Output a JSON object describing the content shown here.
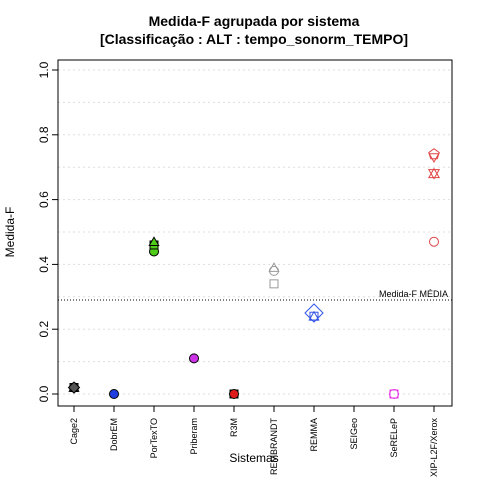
{
  "chart_data": {
    "type": "scatter",
    "title": "Medida-F agrupada por sistema",
    "subtitle": "[Classificação : ALT : tempo_sonorm_TEMPO]",
    "xlabel": "Sistemas",
    "ylabel": "Medida-F",
    "ylim": [
      0,
      1
    ],
    "yticks": [
      "0.0",
      "0.2",
      "0.4",
      "0.6",
      "0.8",
      "1.0"
    ],
    "grid": true,
    "categories": [
      "Cage2",
      "DobrEM",
      "PorTexTO",
      "Priberam",
      "R3M",
      "REMBRANDT",
      "REMMA",
      "SEIGeo",
      "SeRELeP",
      "XIP-L2F/Xerox"
    ],
    "reference_line": {
      "label": "Medida-F MÉDIA",
      "value": 0.29
    },
    "points": [
      {
        "category": "Cage2",
        "y": 0.02,
        "shape": "circle",
        "filled": true,
        "color": "#555555"
      },
      {
        "category": "Cage2",
        "y": 0.02,
        "shape": "square",
        "filled": true,
        "color": "#555555"
      },
      {
        "category": "Cage2",
        "y": 0.02,
        "shape": "triangle",
        "filled": true,
        "color": "#555555"
      },
      {
        "category": "Cage2",
        "y": 0.02,
        "shape": "diamond",
        "filled": true,
        "color": "#555555"
      },
      {
        "category": "DobrEM",
        "y": 0.0,
        "shape": "circle",
        "filled": true,
        "color": "#1f3fe0"
      },
      {
        "category": "PorTexTO",
        "y": 0.44,
        "shape": "circle",
        "filled": true,
        "color": "#4fcc1a"
      },
      {
        "category": "PorTexTO",
        "y": 0.46,
        "shape": "square",
        "filled": true,
        "color": "#4fcc1a"
      },
      {
        "category": "PorTexTO",
        "y": 0.47,
        "shape": "triangle",
        "filled": true,
        "color": "#4fcc1a"
      },
      {
        "category": "Priberam",
        "y": 0.11,
        "shape": "circle",
        "filled": true,
        "color": "#cc33e6"
      },
      {
        "category": "R3M",
        "y": 0.0,
        "shape": "square",
        "filled": true,
        "color": "#e01a1a"
      },
      {
        "category": "R3M",
        "y": 0.0,
        "shape": "circle",
        "filled": true,
        "color": "#e01a1a"
      },
      {
        "category": "REMBRANDT",
        "y": 0.34,
        "shape": "square",
        "filled": false,
        "color": "#999999"
      },
      {
        "category": "REMBRANDT",
        "y": 0.38,
        "shape": "circle",
        "filled": false,
        "color": "#999999"
      },
      {
        "category": "REMBRANDT",
        "y": 0.39,
        "shape": "triangle",
        "filled": false,
        "color": "#999999"
      },
      {
        "category": "REMMA",
        "y": 0.24,
        "shape": "square",
        "filled": false,
        "color": "#3355e6"
      },
      {
        "category": "REMMA",
        "y": 0.25,
        "shape": "diamond",
        "filled": false,
        "color": "#3355e6"
      },
      {
        "category": "REMMA",
        "y": 0.24,
        "shape": "triangle",
        "filled": false,
        "color": "#3355e6"
      },
      {
        "category": "SeRELeP",
        "y": 0.0,
        "shape": "square",
        "filled": false,
        "color": "#e633e6"
      },
      {
        "category": "SeRELeP",
        "y": 0.0,
        "shape": "circle",
        "filled": false,
        "color": "#e633e6"
      },
      {
        "category": "XIP-L2F/Xerox",
        "y": 0.74,
        "shape": "pentagon",
        "filled": false,
        "color": "#e04444"
      },
      {
        "category": "XIP-L2F/Xerox",
        "y": 0.73,
        "shape": "triangle-down",
        "filled": false,
        "color": "#e04444"
      },
      {
        "category": "XIP-L2F/Xerox",
        "y": 0.68,
        "shape": "hexagram",
        "filled": false,
        "color": "#e04444"
      },
      {
        "category": "XIP-L2F/Xerox",
        "y": 0.47,
        "shape": "circle",
        "filled": false,
        "color": "#e04444"
      }
    ]
  }
}
